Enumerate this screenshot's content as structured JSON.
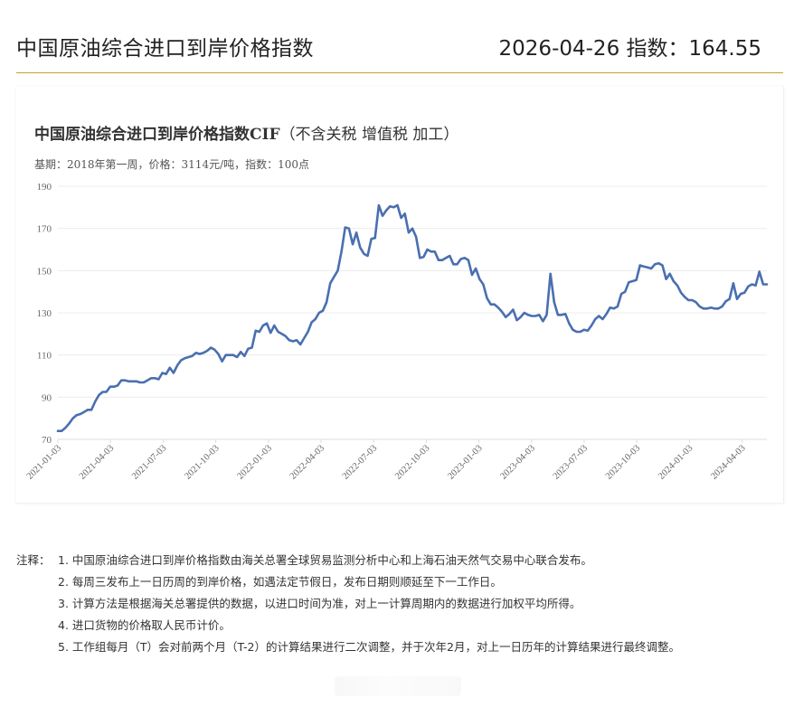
{
  "header": {
    "title": "中国原油综合进口到岸价格指数",
    "latest": "2026-04-26 指数：164.55"
  },
  "chart": {
    "title_main": "中国原油综合进口到岸价格指数CIF",
    "title_paren": "（不含关税 增值税 加工）",
    "subtitle": "基期：2018年第一周，价格：3114元/吨，指数：100点",
    "line_color": "#4a6fb0"
  },
  "chart_data": {
    "type": "line",
    "title": "中国原油综合进口到岸价格指数CIF（不含关税 增值税 加工）",
    "subtitle": "基期：2018年第一周，价格：3114元/吨，指数：100点",
    "xlabel": "",
    "ylabel": "",
    "ylim": [
      70,
      190
    ],
    "yticks": [
      70,
      90,
      110,
      130,
      150,
      170,
      190
    ],
    "xticks": [
      "2021-01-03",
      "2021-04-03",
      "2021-07-03",
      "2021-10-03",
      "2022-01-03",
      "2022-04-03",
      "2022-07-03",
      "2022-10-03",
      "2023-01-03",
      "2023-04-03",
      "2023-07-03",
      "2023-10-03",
      "2024-01-03",
      "2024-04-03"
    ],
    "grid": "horizontal",
    "legend": "none",
    "series": [
      {
        "name": "指数",
        "values": [
          74,
          74,
          75.5,
          77.5,
          80,
          81.5,
          82,
          83,
          84,
          84,
          88,
          91,
          92.5,
          92.5,
          95,
          95,
          95.5,
          98,
          98,
          97.5,
          97.5,
          97.5,
          97,
          97,
          98,
          99,
          99,
          98.5,
          101.5,
          101,
          104,
          101.5,
          105,
          107.5,
          108.5,
          109,
          109.5,
          111,
          110.5,
          111,
          112,
          113.5,
          112.5,
          110.5,
          107,
          110,
          110,
          110,
          109,
          111.5,
          109.5,
          113,
          113.5,
          121.5,
          121,
          124,
          125,
          120.5,
          124,
          121,
          120,
          119,
          117,
          116.5,
          117,
          115,
          118,
          121,
          125.5,
          127,
          130,
          131,
          135,
          144,
          147,
          150,
          159,
          170.5,
          170,
          162.5,
          168,
          161,
          158,
          157,
          165,
          165.5,
          181,
          176,
          178.5,
          180.5,
          180,
          181,
          175,
          177,
          168,
          170,
          166,
          156,
          156.5,
          160,
          159,
          159,
          155,
          155,
          156,
          157,
          153,
          153,
          155.5,
          156,
          155,
          148,
          151,
          146,
          143.5,
          137,
          134,
          134,
          132.5,
          130.5,
          128,
          129.5,
          131.5,
          126.5,
          128,
          130,
          129,
          128.5,
          128.5,
          129,
          126,
          129,
          148.5,
          135,
          129,
          129,
          129.5,
          125,
          122,
          121,
          121,
          122,
          121.5,
          124,
          127,
          128.5,
          127,
          129.5,
          132.5,
          132,
          133,
          139,
          140,
          144.5,
          145,
          145.5,
          152.5,
          152,
          151.5,
          151,
          153,
          153.5,
          152.5,
          146,
          148.5,
          145,
          143,
          139.5,
          137.5,
          136,
          136,
          135,
          133,
          132,
          132,
          132.5,
          132,
          132,
          133,
          135.5,
          136.5,
          144,
          136.5,
          139,
          139.5,
          142.5,
          143.5,
          143,
          149.5,
          143.5,
          143.5
        ]
      }
    ]
  },
  "notes": {
    "label": "注释：",
    "items": [
      "1. 中国原油综合进口到岸价格指数由海关总署全球贸易监测分析中心和上海石油天然气交易中心联合发布。",
      "2. 每周三发布上一日历周的到岸价格，如遇法定节假日，发布日期则顺延至下一工作日。",
      "3. 计算方法是根据海关总署提供的数据，以进口时间为准，对上一计算周期内的数据进行加权平均所得。",
      "4. 进口货物的价格取人民币计价。",
      "5. 工作组每月（T）会对前两个月（T-2）的计算结果进行二次调整，并于次年2月，对上一日历年的计算结果进行最终调整。"
    ]
  }
}
